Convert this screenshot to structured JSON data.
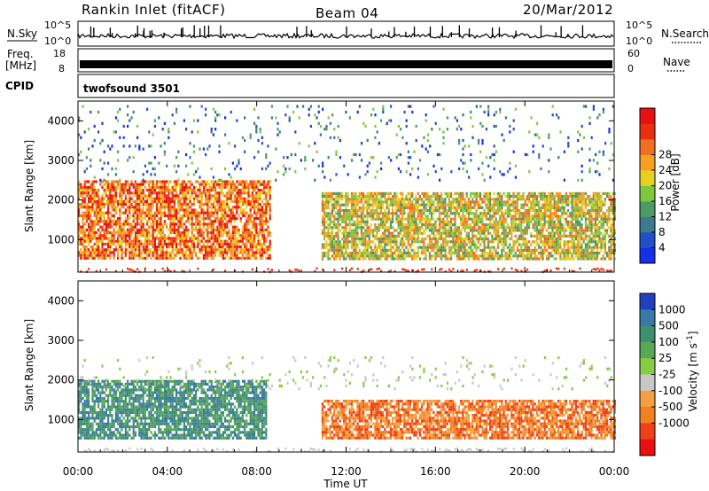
{
  "header": {
    "station": "Rankin Inlet (fitACF)",
    "beam": "Beam 04",
    "date": "20/Mar/2012"
  },
  "strips": {
    "nsky_label": "N.Sky",
    "nsky_ticks": [
      "10^5",
      "10^0"
    ],
    "nsearch_label": "N.Search",
    "nsearch_ticks": [
      "10^5",
      "10^0"
    ],
    "freq_label_1": "Freq.",
    "freq_label_2": "[MHz]",
    "freq_ticks": [
      "18",
      "8"
    ],
    "nave_label": "Nave",
    "nave_ticks": [
      "60",
      "0"
    ],
    "cpid_label": "CPID",
    "cpid_value": "twofsound 3501"
  },
  "chart_data": [
    {
      "type": "heatmap",
      "panel": "power",
      "ylabel": "Slant Range [km]",
      "y_ticks": [
        1000,
        2000,
        3000,
        4000
      ],
      "ylim": [
        180,
        4500
      ],
      "xlim": [
        "00:00",
        "24:00"
      ],
      "colorbar_label": "Power [dB]",
      "colorbar_ticks": [
        "4",
        "8",
        "12",
        "16",
        "20",
        "24",
        "28"
      ],
      "colorbar_colors": [
        "#1530e6",
        "#2050c8",
        "#3d7a8c",
        "#4d9a66",
        "#7ec840",
        "#e8d020",
        "#f5a020",
        "#f07020",
        "#e83010",
        "#e81010"
      ],
      "echo_regions": [
        {
          "t_start": 0.0,
          "t_end": 8.6,
          "range_min": 500,
          "range_max": 2500,
          "typical_db": 24
        },
        {
          "t_start": 10.9,
          "t_end": 24.0,
          "range_min": 500,
          "range_max": 2200,
          "typical_db": 16
        },
        {
          "t_start": 0.0,
          "t_end": 24.0,
          "range_min": 2500,
          "range_max": 4400,
          "typical_db": 10
        }
      ]
    },
    {
      "type": "heatmap",
      "panel": "velocity",
      "ylabel": "Slant Range [km]",
      "y_ticks": [
        1000,
        2000,
        3000,
        4000
      ],
      "ylim": [
        180,
        4500
      ],
      "xlim": [
        "00:00",
        "24:00"
      ],
      "xlabel": "Time UT",
      "x_ticks": [
        "00:00",
        "04:00",
        "08:00",
        "12:00",
        "16:00",
        "20:00",
        "00:00"
      ],
      "colorbar_label": "Velocity [m s^-1]",
      "colorbar_ticks": [
        "1000",
        "500",
        "100",
        "25",
        "-25",
        "-100",
        "-500",
        "-1000"
      ],
      "colorbar_colors": [
        "#2040c0",
        "#3a78a8",
        "#3e8e70",
        "#5aa854",
        "#88cc44",
        "#c8c8c8",
        "#f4a040",
        "#f08020",
        "#f04018",
        "#e81010"
      ],
      "echo_regions": [
        {
          "t_start": 0.0,
          "t_end": 8.4,
          "range_min": 500,
          "range_max": 2000,
          "typical_velocity": 300
        },
        {
          "t_start": 10.9,
          "t_end": 24.0,
          "range_min": 500,
          "range_max": 1500,
          "typical_velocity": -200
        },
        {
          "t_start": 0.0,
          "t_end": 24.0,
          "range_min": 1800,
          "range_max": 2600,
          "typical_velocity": 0
        }
      ]
    }
  ]
}
